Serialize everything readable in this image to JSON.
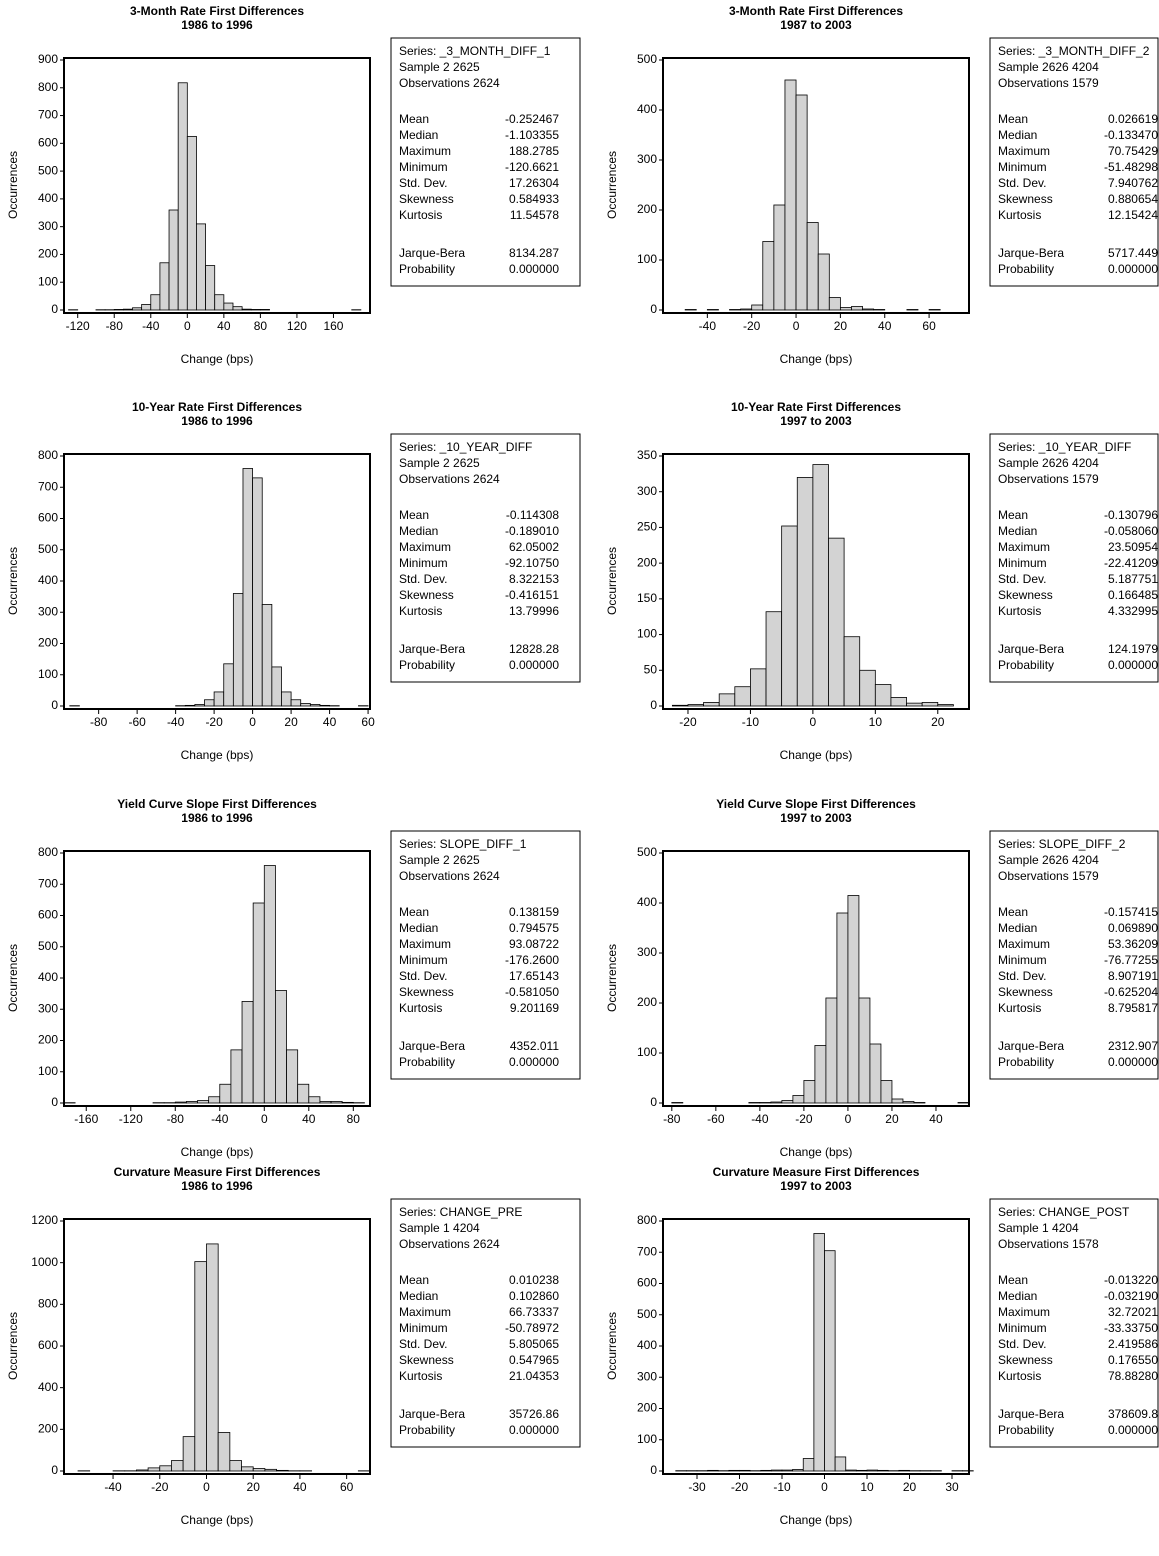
{
  "chart_data": [
    {
      "type": "histogram",
      "title": "3-Month Rate First Differences",
      "subtitle": "1986 to 1996",
      "xlabel": "Change (bps)",
      "ylabel": "Occurrences",
      "color": "#d3d3d3",
      "bins": [
        -130,
        -120,
        -110,
        -100,
        -90,
        -80,
        -70,
        -60,
        -50,
        -40,
        -30,
        -20,
        -10,
        0,
        10,
        20,
        30,
        40,
        50,
        60,
        70,
        80,
        90,
        100,
        110,
        120,
        130,
        140,
        150,
        160,
        170,
        180,
        190
      ],
      "values": [
        1,
        0,
        0,
        1,
        1,
        2,
        3,
        8,
        20,
        55,
        170,
        360,
        818,
        625,
        310,
        160,
        55,
        25,
        12,
        3,
        2,
        2,
        0,
        0,
        0,
        0,
        0,
        0,
        0,
        0,
        0,
        1
      ],
      "xlim": [
        -135,
        200
      ],
      "ylim": [
        0,
        900
      ],
      "xticks": [
        -120,
        -80,
        -40,
        0,
        40,
        80,
        120,
        160
      ],
      "yticks": [
        0,
        100,
        200,
        300,
        400,
        500,
        600,
        700,
        800,
        900
      ],
      "stats": {
        "series": "Series: _3_MONTH_DIFF_1",
        "sample": "Sample 2 2625",
        "observations": "Observations 2624",
        "rows": [
          [
            "Mean",
            "-0.252467"
          ],
          [
            "Median",
            "-1.103355"
          ],
          [
            "Maximum",
            "188.2785"
          ],
          [
            "Minimum",
            "-120.6621"
          ],
          [
            "Std. Dev.",
            "17.26304"
          ],
          [
            "Skewness",
            "0.584933"
          ],
          [
            "Kurtosis",
            "11.54578"
          ]
        ],
        "tests": [
          [
            "Jarque-Bera",
            "8134.287"
          ],
          [
            "Probability",
            "0.000000"
          ]
        ]
      }
    },
    {
      "type": "histogram",
      "title": "3-Month Rate First Differences",
      "subtitle": "1987 to 2003",
      "xlabel": "Change (bps)",
      "ylabel": "Occurrences",
      "color": "#d3d3d3",
      "bins": [
        -60,
        -55,
        -50,
        -45,
        -40,
        -35,
        -30,
        -25,
        -20,
        -15,
        -10,
        -5,
        0,
        5,
        10,
        15,
        20,
        25,
        30,
        35,
        40,
        45,
        50,
        55,
        60,
        65,
        70,
        75
      ],
      "values": [
        0,
        0,
        1,
        0,
        1,
        0,
        1,
        2,
        10,
        137,
        210,
        460,
        430,
        175,
        112,
        25,
        5,
        7,
        2,
        1,
        0,
        0,
        1,
        0,
        1,
        0,
        0
      ],
      "xlim": [
        -60,
        78
      ],
      "ylim": [
        0,
        500
      ],
      "xticks": [
        -40,
        -20,
        0,
        20,
        40,
        60
      ],
      "yticks": [
        0,
        100,
        200,
        300,
        400,
        500
      ],
      "stats": {
        "series": "Series: _3_MONTH_DIFF_2",
        "sample": "Sample 2626 4204",
        "observations": "Observations 1579",
        "rows": [
          [
            "Mean",
            "0.026619"
          ],
          [
            "Median",
            "-0.133470"
          ],
          [
            "Maximum",
            "70.75429"
          ],
          [
            "Minimum",
            "-51.48298"
          ],
          [
            "Std. Dev.",
            "7.940762"
          ],
          [
            "Skewness",
            "0.880654"
          ],
          [
            "Kurtosis",
            "12.15424"
          ]
        ],
        "tests": [
          [
            "Jarque-Bera",
            "5717.449"
          ],
          [
            "Probability",
            "0.000000"
          ]
        ]
      }
    },
    {
      "type": "histogram",
      "title": "10-Year Rate First Differences",
      "subtitle": "1986 to 1996",
      "xlabel": "Change (bps)",
      "ylabel": "Occurrences",
      "color": "#d3d3d3",
      "bins": [
        -95,
        -90,
        -85,
        -80,
        -75,
        -70,
        -65,
        -60,
        -55,
        -50,
        -45,
        -40,
        -35,
        -30,
        -25,
        -20,
        -15,
        -10,
        -5,
        0,
        5,
        10,
        15,
        20,
        25,
        30,
        35,
        40,
        45,
        50,
        55,
        60
      ],
      "values": [
        1,
        0,
        0,
        0,
        0,
        0,
        0,
        0,
        0,
        0,
        0,
        1,
        2,
        5,
        20,
        45,
        135,
        360,
        760,
        730,
        325,
        125,
        45,
        20,
        8,
        5,
        2,
        1,
        0,
        0,
        1
      ],
      "xlim": [
        -98,
        61
      ],
      "ylim": [
        0,
        800
      ],
      "xticks": [
        -80,
        -60,
        -40,
        -20,
        0,
        20,
        40,
        60
      ],
      "yticks": [
        0,
        100,
        200,
        300,
        400,
        500,
        600,
        700,
        800
      ],
      "stats": {
        "series": "Series: _10_YEAR_DIFF",
        "sample": "Sample 2 2625",
        "observations": "Observations 2624",
        "rows": [
          [
            "Mean",
            "-0.114308"
          ],
          [
            "Median",
            "-0.189010"
          ],
          [
            "Maximum",
            "62.05002"
          ],
          [
            "Minimum",
            "-92.10750"
          ],
          [
            "Std. Dev.",
            "8.322153"
          ],
          [
            "Skewness",
            "-0.416151"
          ],
          [
            "Kurtosis",
            "13.79996"
          ]
        ],
        "tests": [
          [
            "Jarque-Bera",
            "12828.28"
          ],
          [
            "Probability",
            "0.000000"
          ]
        ]
      }
    },
    {
      "type": "histogram",
      "title": "10-Year Rate First Differences",
      "subtitle": "1997 to 2003",
      "xlabel": "Change (bps)",
      "ylabel": "Occurrences",
      "color": "#d3d3d3",
      "bins": [
        -22.5,
        -20,
        -17.5,
        -15,
        -12.5,
        -10,
        -7.5,
        -5,
        -2.5,
        0,
        2.5,
        5,
        7.5,
        10,
        12.5,
        15,
        17.5,
        20,
        22.5
      ],
      "values": [
        1,
        2,
        5,
        17,
        27,
        52,
        132,
        252,
        320,
        338,
        235,
        97,
        50,
        30,
        12,
        4,
        5,
        2
      ],
      "xlim": [
        -24,
        25
      ],
      "ylim": [
        0,
        350
      ],
      "xticks": [
        -20,
        -10,
        0,
        10,
        20
      ],
      "yticks": [
        0,
        50,
        100,
        150,
        200,
        250,
        300,
        350
      ],
      "stats": {
        "series": "Series: _10_YEAR_DIFF",
        "sample": "Sample 2626 4204",
        "observations": "Observations 1579",
        "rows": [
          [
            "Mean",
            "-0.130796"
          ],
          [
            "Median",
            "-0.058060"
          ],
          [
            "Maximum",
            "23.50954"
          ],
          [
            "Minimum",
            "-22.41209"
          ],
          [
            "Std. Dev.",
            "5.187751"
          ],
          [
            "Skewness",
            "0.166485"
          ],
          [
            "Kurtosis",
            "4.332995"
          ]
        ],
        "tests": [
          [
            "Jarque-Bera",
            "124.1979"
          ],
          [
            "Probability",
            "0.000000"
          ]
        ]
      }
    },
    {
      "type": "histogram",
      "title": "Yield Curve Slope First Differences",
      "subtitle": "1986 to 1996",
      "xlabel": "Change (bps)",
      "ylabel": "Occurrences",
      "color": "#d3d3d3",
      "bins": [
        -180,
        -170,
        -160,
        -150,
        -140,
        -130,
        -120,
        -110,
        -100,
        -90,
        -80,
        -70,
        -60,
        -50,
        -40,
        -30,
        -20,
        -10,
        0,
        10,
        20,
        30,
        40,
        50,
        60,
        70,
        80,
        90
      ],
      "values": [
        1,
        0,
        0,
        0,
        0,
        0,
        0,
        0,
        1,
        1,
        3,
        5,
        8,
        20,
        60,
        170,
        325,
        640,
        760,
        360,
        170,
        60,
        20,
        5,
        5,
        2,
        1
      ],
      "xlim": [
        -180,
        95
      ],
      "ylim": [
        0,
        800
      ],
      "xticks": [
        -160,
        -120,
        -80,
        -40,
        0,
        40,
        80
      ],
      "yticks": [
        0,
        100,
        200,
        300,
        400,
        500,
        600,
        700,
        800
      ],
      "stats": {
        "series": "Series: SLOPE_DIFF_1",
        "sample": "Sample 2 2625",
        "observations": "Observations 2624",
        "rows": [
          [
            "Mean",
            "0.138159"
          ],
          [
            "Median",
            "0.794575"
          ],
          [
            "Maximum",
            "93.08722"
          ],
          [
            "Minimum",
            "-176.2600"
          ],
          [
            "Std. Dev.",
            "17.65143"
          ],
          [
            "Skewness",
            "-0.581050"
          ],
          [
            "Kurtosis",
            "9.201169"
          ]
        ],
        "tests": [
          [
            "Jarque-Bera",
            "4352.011"
          ],
          [
            "Probability",
            "0.000000"
          ]
        ]
      }
    },
    {
      "type": "histogram",
      "title": "Yield Curve Slope First Differences",
      "subtitle": "1997 to 2003",
      "xlabel": "Change (bps)",
      "ylabel": "Occurrences",
      "color": "#d3d3d3",
      "bins": [
        -80,
        -75,
        -70,
        -65,
        -60,
        -55,
        -50,
        -45,
        -40,
        -35,
        -30,
        -25,
        -20,
        -15,
        -10,
        -5,
        0,
        5,
        10,
        15,
        20,
        25,
        30,
        35,
        40,
        45,
        50,
        55
      ],
      "values": [
        1,
        0,
        0,
        0,
        0,
        0,
        0,
        1,
        1,
        2,
        5,
        15,
        45,
        115,
        210,
        380,
        415,
        210,
        118,
        45,
        8,
        3,
        1,
        0,
        0,
        0,
        1
      ],
      "xlim": [
        -84,
        55
      ],
      "ylim": [
        0,
        500
      ],
      "xticks": [
        -80,
        -60,
        -40,
        -20,
        0,
        20,
        40
      ],
      "yticks": [
        0,
        100,
        200,
        300,
        400,
        500
      ],
      "stats": {
        "series": "Series: SLOPE_DIFF_2",
        "sample": "Sample 2626 4204",
        "observations": "Observations 1579",
        "rows": [
          [
            "Mean",
            "-0.157415"
          ],
          [
            "Median",
            "0.069890"
          ],
          [
            "Maximum",
            "53.36209"
          ],
          [
            "Minimum",
            "-76.77255"
          ],
          [
            "Std. Dev.",
            "8.907191"
          ],
          [
            "Skewness",
            "-0.625204"
          ],
          [
            "Kurtosis",
            "8.795817"
          ]
        ],
        "tests": [
          [
            "Jarque-Bera",
            "2312.907"
          ],
          [
            "Probability",
            "0.000000"
          ]
        ]
      }
    },
    {
      "type": "histogram",
      "title": "Curvature Measure First Differences",
      "subtitle": "1986 to 1996",
      "xlabel": "Change (bps)",
      "ylabel": "Occurrences",
      "color": "#d3d3d3",
      "bins": [
        -55,
        -50,
        -45,
        -40,
        -35,
        -30,
        -25,
        -20,
        -15,
        -10,
        -5,
        0,
        5,
        10,
        15,
        20,
        25,
        30,
        35,
        40,
        45,
        50,
        55,
        60,
        65,
        70
      ],
      "values": [
        1,
        0,
        0,
        1,
        1,
        5,
        15,
        25,
        50,
        165,
        1005,
        1090,
        185,
        50,
        20,
        12,
        8,
        3,
        1,
        1,
        0,
        0,
        0,
        0,
        1
      ],
      "xlim": [
        -61,
        70
      ],
      "ylim": [
        0,
        1200
      ],
      "xticks": [
        -40,
        -20,
        0,
        20,
        40,
        60
      ],
      "yticks": [
        0,
        200,
        400,
        600,
        800,
        1000,
        1200
      ],
      "stats": {
        "series": "Series: CHANGE_PRE",
        "sample": "Sample 1 4204",
        "observations": "Observations 2624",
        "rows": [
          [
            "Mean",
            "0.010238"
          ],
          [
            "Median",
            "0.102860"
          ],
          [
            "Maximum",
            "66.73337"
          ],
          [
            "Minimum",
            "-50.78972"
          ],
          [
            "Std. Dev.",
            "5.805065"
          ],
          [
            "Skewness",
            "0.547965"
          ],
          [
            "Kurtosis",
            "21.04353"
          ]
        ],
        "tests": [
          [
            "Jarque-Bera",
            "35726.86"
          ],
          [
            "Probability",
            "0.000000"
          ]
        ]
      }
    },
    {
      "type": "histogram",
      "title": "Curvature Measure First Differences",
      "subtitle": "1997 to 2003",
      "xlabel": "Change (bps)",
      "ylabel": "Occurrences",
      "color": "#d3d3d3",
      "bins": [
        -35,
        -32.5,
        -30,
        -27.5,
        -25,
        -22.5,
        -20,
        -17.5,
        -15,
        -12.5,
        -10,
        -7.5,
        -5,
        -2.5,
        0,
        2.5,
        5,
        7.5,
        10,
        12.5,
        15,
        17.5,
        20,
        22.5,
        25,
        27.5,
        30,
        32.5,
        35
      ],
      "values": [
        1,
        1,
        1,
        2,
        1,
        2,
        2,
        1,
        2,
        3,
        3,
        5,
        40,
        760,
        705,
        45,
        3,
        2,
        3,
        2,
        1,
        2,
        1,
        1,
        1,
        0,
        1,
        1
      ],
      "xlim": [
        -38,
        34
      ],
      "ylim": [
        0,
        800
      ],
      "xticks": [
        -30,
        -20,
        -10,
        0,
        10,
        20,
        30
      ],
      "yticks": [
        0,
        100,
        200,
        300,
        400,
        500,
        600,
        700,
        800
      ],
      "stats": {
        "series": "Series: CHANGE_POST",
        "sample": "Sample 1 4204",
        "observations": "Observations 1578",
        "rows": [
          [
            "Mean",
            "-0.013220"
          ],
          [
            "Median",
            "-0.032190"
          ],
          [
            "Maximum",
            "32.72021"
          ],
          [
            "Minimum",
            "-33.33750"
          ],
          [
            "Std. Dev.",
            "2.419586"
          ],
          [
            "Skewness",
            "0.176550"
          ],
          [
            "Kurtosis",
            "78.88280"
          ]
        ],
        "tests": [
          [
            "Jarque-Bera",
            "378609.8"
          ],
          [
            "Probability",
            "0.000000"
          ]
        ]
      }
    }
  ]
}
